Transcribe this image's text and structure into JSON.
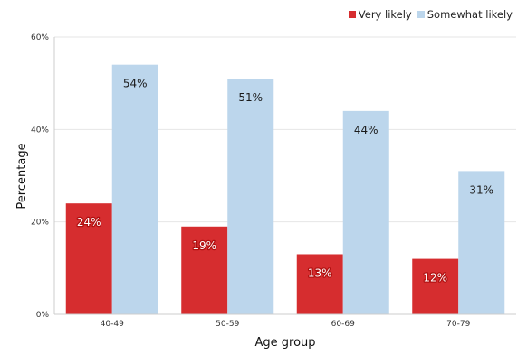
{
  "chart_data": {
    "type": "bar",
    "title": "",
    "xlabel": "Age group",
    "ylabel": "Percentage",
    "categories": [
      "40-49",
      "50-59",
      "60-69",
      "70-79"
    ],
    "series": [
      {
        "name": "Very likely",
        "values": [
          24,
          19,
          13,
          12
        ],
        "color": "#d62d2f",
        "labels": [
          "24%",
          "19%",
          "13%",
          "12%"
        ]
      },
      {
        "name": "Somewhat likely",
        "values": [
          54,
          51,
          44,
          31
        ],
        "color": "#bcd6ec",
        "labels": [
          "54%",
          "51%",
          "44%",
          "31%"
        ]
      }
    ],
    "ylim": [
      0,
      60
    ],
    "yticks": [
      0,
      20,
      40,
      60
    ],
    "ytick_labels": [
      "0%",
      "20%",
      "40%",
      "60%"
    ],
    "grid": true,
    "legend_position": "top-right"
  }
}
